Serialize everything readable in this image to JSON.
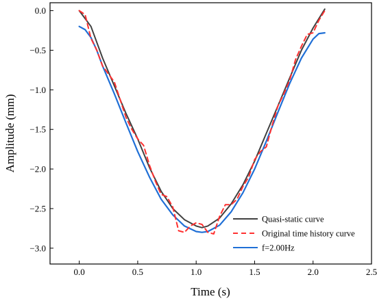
{
  "chart_data": {
    "type": "line",
    "xlabel": "Time (s)",
    "ylabel": "Amplitude (mm)",
    "xlim": [
      -0.25,
      2.5
    ],
    "ylim": [
      -3.2,
      0.1
    ],
    "x_ticks": [
      "0.0",
      "0.5",
      "1.0",
      "1.5",
      "2.0",
      "2.5"
    ],
    "y_ticks": [
      "0.0",
      "-0.5",
      "-1.0",
      "-1.5",
      "-2.0",
      "-2.5",
      "-3.0"
    ],
    "legend_position": "bottom-right",
    "series": [
      {
        "name": "Quasi-static curve",
        "color": "#404040",
        "style": "solid",
        "x": [
          0.0,
          0.1,
          0.2,
          0.3,
          0.4,
          0.5,
          0.6,
          0.7,
          0.8,
          0.9,
          1.0,
          1.05,
          1.1,
          1.2,
          1.3,
          1.4,
          1.5,
          1.6,
          1.7,
          1.8,
          1.9,
          2.0,
          2.1
        ],
        "y": [
          0.0,
          -0.2,
          -0.6,
          -0.95,
          -1.3,
          -1.62,
          -1.98,
          -2.28,
          -2.5,
          -2.64,
          -2.72,
          -2.74,
          -2.72,
          -2.62,
          -2.44,
          -2.2,
          -1.9,
          -1.55,
          -1.2,
          -0.85,
          -0.5,
          -0.22,
          0.02
        ]
      },
      {
        "name": "Original time history curve",
        "color": "#ff3030",
        "style": "dashed",
        "x": [
          0.0,
          0.05,
          0.1,
          0.15,
          0.2,
          0.3,
          0.4,
          0.45,
          0.5,
          0.55,
          0.6,
          0.65,
          0.7,
          0.75,
          0.8,
          0.85,
          0.9,
          0.95,
          1.0,
          1.05,
          1.1,
          1.15,
          1.2,
          1.25,
          1.3,
          1.35,
          1.4,
          1.45,
          1.5,
          1.55,
          1.6,
          1.65,
          1.7,
          1.75,
          1.8,
          1.85,
          1.9,
          1.95,
          2.0,
          2.05,
          2.1
        ],
        "y": [
          0.0,
          -0.05,
          -0.35,
          -0.5,
          -0.7,
          -0.9,
          -1.35,
          -1.5,
          -1.62,
          -1.7,
          -1.95,
          -2.15,
          -2.32,
          -2.35,
          -2.48,
          -2.78,
          -2.8,
          -2.72,
          -2.68,
          -2.7,
          -2.8,
          -2.82,
          -2.6,
          -2.45,
          -2.45,
          -2.38,
          -2.22,
          -2.1,
          -1.88,
          -1.78,
          -1.72,
          -1.45,
          -1.2,
          -1.05,
          -0.88,
          -0.62,
          -0.45,
          -0.3,
          -0.28,
          -0.12,
          0.0
        ]
      },
      {
        "name": "f=2.00Hz",
        "color": "#1f6fd6",
        "style": "solid",
        "x": [
          0.0,
          0.05,
          0.1,
          0.15,
          0.2,
          0.3,
          0.4,
          0.5,
          0.6,
          0.7,
          0.8,
          0.9,
          1.0,
          1.05,
          1.1,
          1.2,
          1.3,
          1.4,
          1.5,
          1.6,
          1.7,
          1.8,
          1.9,
          2.0,
          2.05,
          2.1
        ],
        "y": [
          -0.2,
          -0.24,
          -0.34,
          -0.5,
          -0.7,
          -1.05,
          -1.42,
          -1.78,
          -2.1,
          -2.38,
          -2.58,
          -2.72,
          -2.79,
          -2.8,
          -2.79,
          -2.71,
          -2.54,
          -2.3,
          -2.0,
          -1.65,
          -1.28,
          -0.92,
          -0.6,
          -0.36,
          -0.29,
          -0.28
        ]
      }
    ]
  }
}
